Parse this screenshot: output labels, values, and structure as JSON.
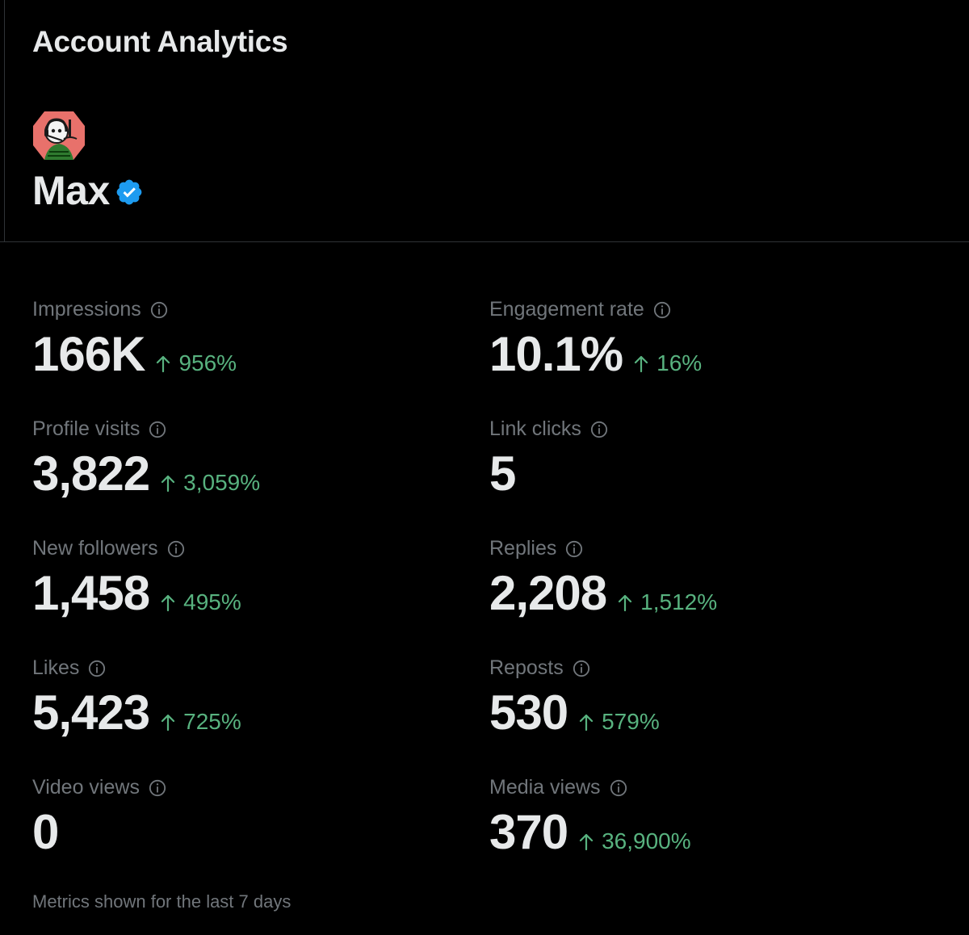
{
  "header": {
    "title": "Account Analytics",
    "account_name": "Max",
    "avatar_icon": "cartoon-avatar-icon",
    "verified_icon": "verified-badge-icon"
  },
  "metrics": [
    {
      "label": "Impressions",
      "value": "166K",
      "change": "956%",
      "trend": "up"
    },
    {
      "label": "Engagement rate",
      "value": "10.1%",
      "change": "16%",
      "trend": "up"
    },
    {
      "label": "Profile visits",
      "value": "3,822",
      "change": "3,059%",
      "trend": "up"
    },
    {
      "label": "Link clicks",
      "value": "5",
      "change": "",
      "trend": "none"
    },
    {
      "label": "New followers",
      "value": "1,458",
      "change": "495%",
      "trend": "up"
    },
    {
      "label": "Replies",
      "value": "2,208",
      "change": "1,512%",
      "trend": "up"
    },
    {
      "label": "Likes",
      "value": "5,423",
      "change": "725%",
      "trend": "up"
    },
    {
      "label": "Reposts",
      "value": "530",
      "change": "579%",
      "trend": "up"
    },
    {
      "label": "Video views",
      "value": "0",
      "change": "",
      "trend": "none"
    },
    {
      "label": "Media views",
      "value": "370",
      "change": "36,900%",
      "trend": "up"
    }
  ],
  "footer": {
    "note": "Metrics shown for the last 7 days"
  },
  "colors": {
    "background": "#000000",
    "text_primary": "#e7e9ea",
    "text_secondary": "#71767b",
    "positive_change": "#58b27f",
    "verified_blue": "#1d9bf0",
    "divider": "#2f3336"
  }
}
